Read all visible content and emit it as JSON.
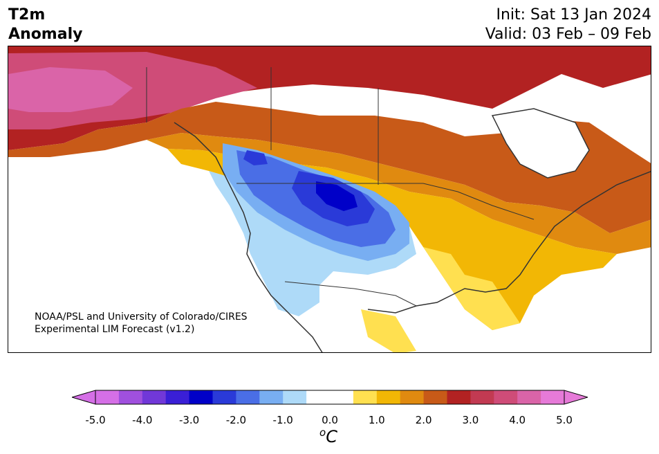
{
  "header": {
    "title_line1": "T2m",
    "title_line2": "Anomaly",
    "init": "Init: Sat 13 Jan 2024",
    "valid": "Valid: 03 Feb – 09 Feb"
  },
  "map": {
    "region": "North America",
    "credit_line1": "NOAA/PSL and University of Colorado/CIRES",
    "credit_line2": "Experimental LIM Forecast (v1.2)"
  },
  "colorbar": {
    "unit_base": "C",
    "unit_sup": "o",
    "ticks": [
      "-5.0",
      "-4.0",
      "-3.0",
      "-2.0",
      "-1.0",
      "0.0",
      "1.0",
      "2.0",
      "3.0",
      "4.0",
      "5.0"
    ],
    "colors": [
      "#d56fe6",
      "#a050de",
      "#7138d8",
      "#3a1fd6",
      "#0000c8",
      "#2a3ad8",
      "#4a6ee6",
      "#78aef2",
      "#aedaf8",
      "#ffffff",
      "#ffffff",
      "#ffe050",
      "#f2b705",
      "#e08a10",
      "#c85a18",
      "#b22222",
      "#c23a52",
      "#cf4c78",
      "#da64a8",
      "#e67ad8"
    ],
    "extend_min_color": "#d56fe6",
    "extend_max_color": "#e67ad8"
  }
}
